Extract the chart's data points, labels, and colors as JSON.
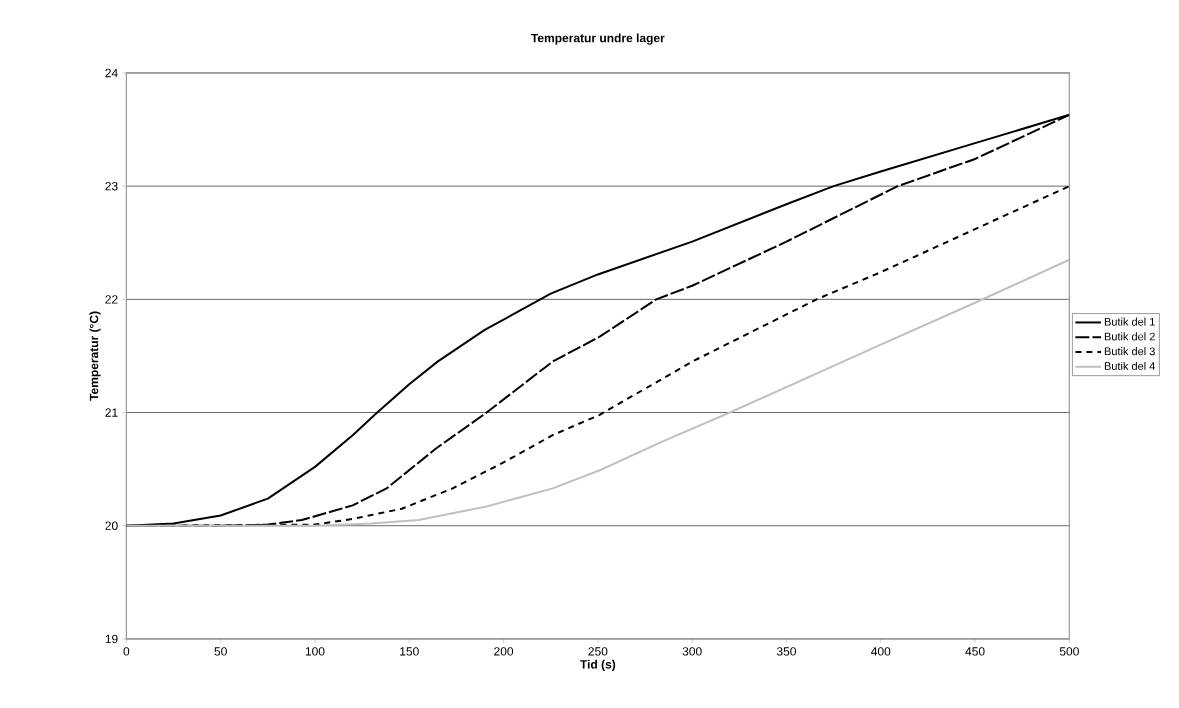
{
  "chart_data": {
    "type": "line",
    "title": "Temperatur undre lager",
    "xlabel": "Tid (s)",
    "ylabel": "Temperatur (°C)",
    "xlim": [
      0,
      500
    ],
    "ylim": [
      19,
      24
    ],
    "xticks": [
      0,
      50,
      100,
      150,
      200,
      250,
      300,
      350,
      400,
      450,
      500
    ],
    "yticks": [
      19,
      20,
      21,
      22,
      23,
      24
    ],
    "grid": "y",
    "legend": "right",
    "marker": "none",
    "series": [
      {
        "name": "Butik del 1",
        "color": "#000000",
        "line_style": "solid",
        "x": [
          0,
          25,
          50,
          75,
          100,
          120,
          133,
          150,
          165,
          190,
          225,
          250,
          300,
          350,
          375,
          400,
          450,
          500
        ],
        "values": [
          20,
          20.02,
          20.09,
          20.24,
          20.52,
          20.8,
          21.0,
          21.25,
          21.45,
          21.73,
          22.05,
          22.22,
          22.51,
          22.84,
          23.0,
          23.13,
          23.38,
          23.63
        ]
      },
      {
        "name": "Butik del 2",
        "color": "#000000",
        "line_style": "dashed",
        "x": [
          0,
          50,
          75,
          93,
          120,
          138,
          164,
          191,
          226,
          251,
          281,
          300,
          350,
          409,
          450,
          500
        ],
        "values": [
          20,
          20.0,
          20.01,
          20.05,
          20.18,
          20.33,
          20.68,
          21.0,
          21.45,
          21.67,
          22.0,
          22.12,
          22.51,
          23.0,
          23.24,
          23.63
        ]
      },
      {
        "name": "Butik del 3",
        "color": "#000000",
        "line_style": "dotted",
        "x": [
          0,
          100,
          120,
          146,
          173,
          199,
          226,
          251,
          300,
          366,
          400,
          450,
          500
        ],
        "values": [
          20,
          20.01,
          20.06,
          20.15,
          20.33,
          20.55,
          20.8,
          20.98,
          21.45,
          22.0,
          22.24,
          22.62,
          23.0
        ]
      },
      {
        "name": "Butik del 4",
        "color": "#c0c0c0",
        "line_style": "solid",
        "x": [
          0,
          100,
          130,
          155,
          191,
          226,
          251,
          285,
          320,
          400,
          450,
          500
        ],
        "values": [
          20,
          20.0,
          20.02,
          20.05,
          20.17,
          20.33,
          20.49,
          20.75,
          21.0,
          21.6,
          21.97,
          22.35
        ]
      }
    ]
  }
}
